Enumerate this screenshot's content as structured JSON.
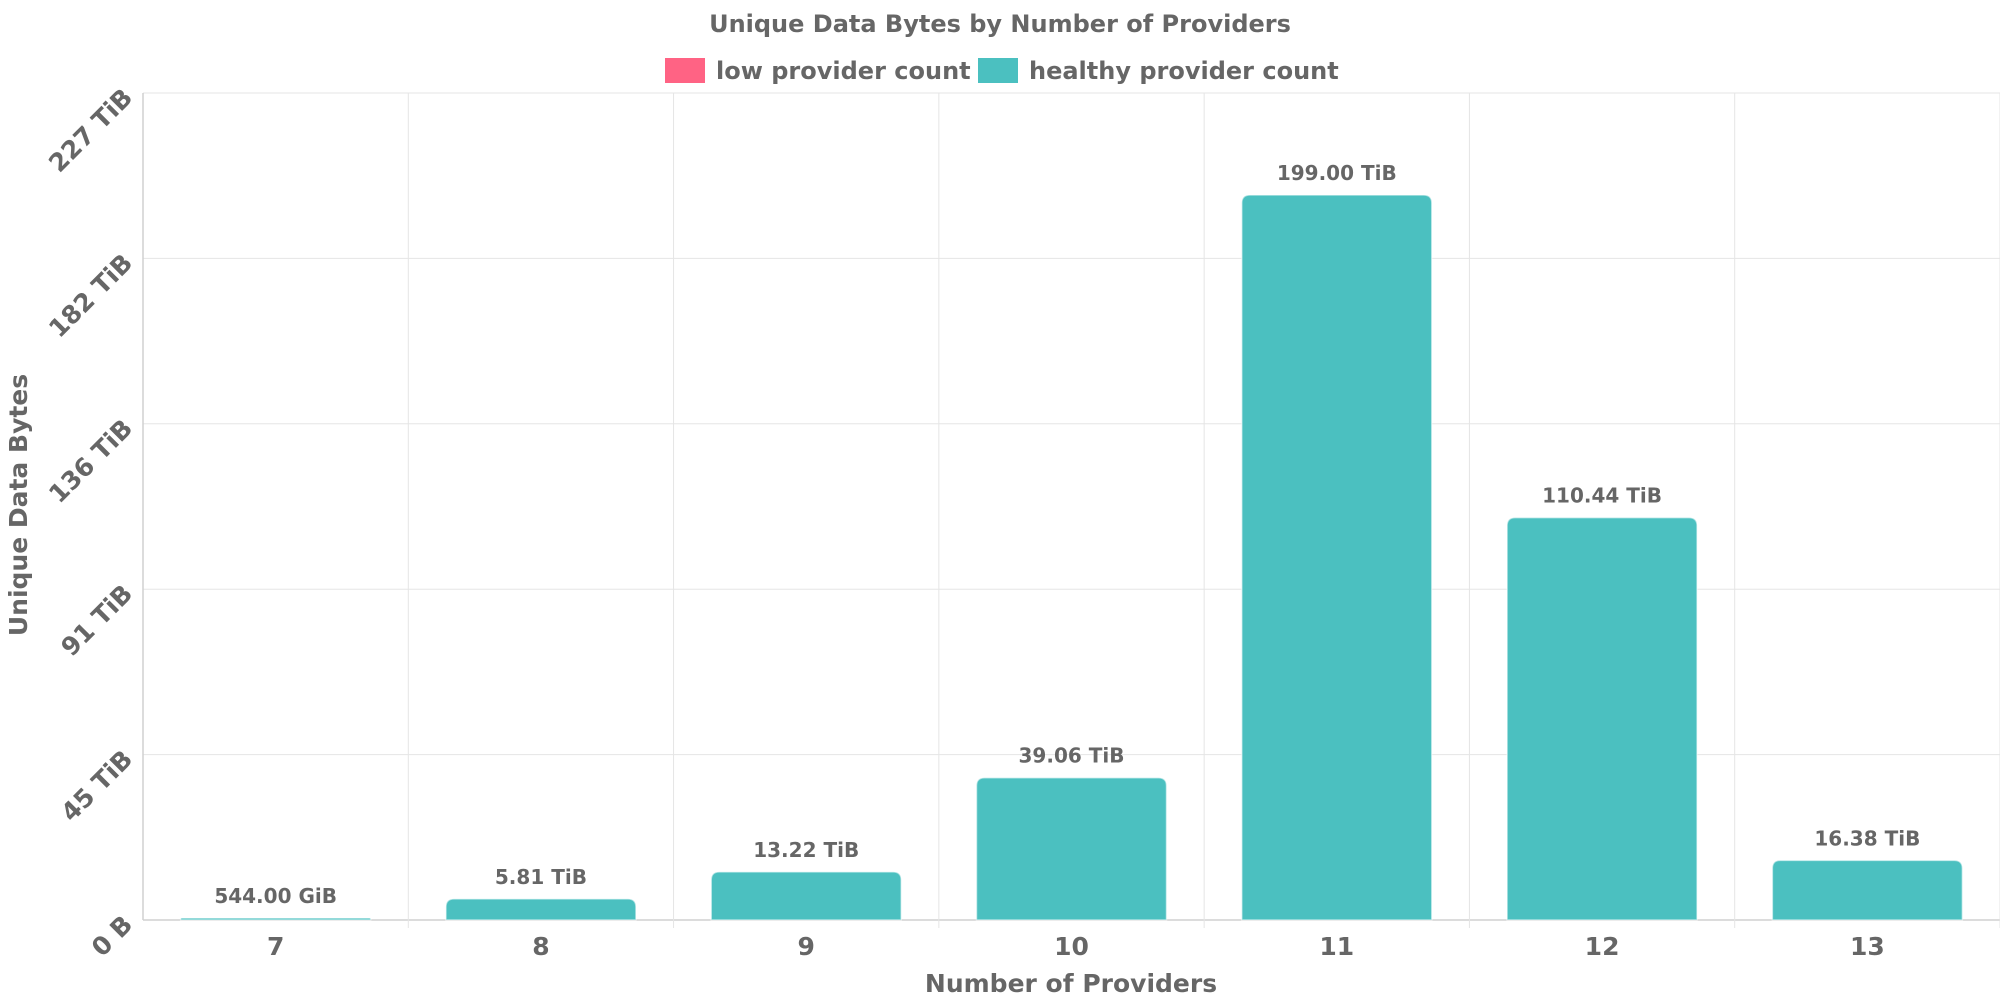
{
  "chart_data": {
    "type": "bar",
    "title": "Unique Data Bytes by Number of Providers",
    "xlabel": "Number of Providers",
    "ylabel": "Unique Data Bytes",
    "categories": [
      "7",
      "8",
      "9",
      "10",
      "11",
      "12",
      "13"
    ],
    "series": [
      {
        "name": "healthy provider count",
        "color": "#4bc0c0",
        "values": [
          0.53125,
          5.81,
          13.22,
          39.06,
          199.0,
          110.44,
          16.38
        ],
        "value_labels": [
          "544.00 GiB",
          "5.81 TiB",
          "13.22 TiB",
          "39.06 TiB",
          "199.00 TiB",
          "110.44 TiB",
          "16.38 TiB"
        ]
      }
    ],
    "legend": [
      {
        "name": "low provider count",
        "color": "#ff6384"
      },
      {
        "name": "healthy provider count",
        "color": "#4bc0c0"
      }
    ],
    "legend_position": "top",
    "yunit": "TiB",
    "ylim": [
      0,
      227
    ],
    "yticks": [
      0,
      45.4,
      90.8,
      136.2,
      181.6,
      227
    ],
    "ytick_labels": [
      "0 B",
      "45 TiB",
      "91 TiB",
      "136 TiB",
      "182 TiB",
      "227 TiB"
    ],
    "grid": true
  }
}
